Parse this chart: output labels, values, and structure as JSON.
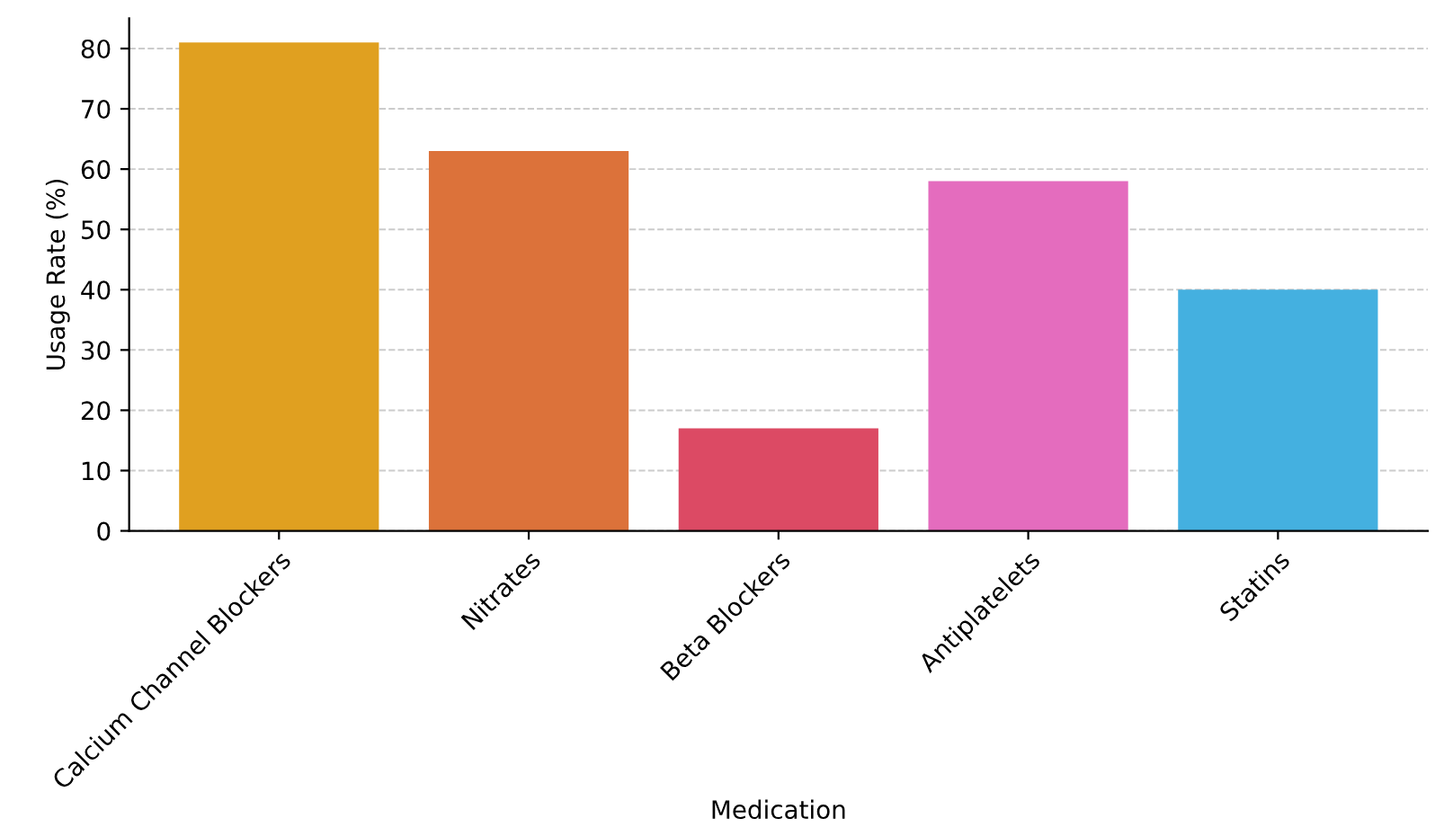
{
  "chart_data": {
    "type": "bar",
    "xlabel": "Medication",
    "ylabel": "Usage Rate (%)",
    "categories": [
      "Calcium Channel Blockers",
      "Nitrates",
      "Beta Blockers",
      "Antiplatelets",
      "Statins"
    ],
    "values": [
      81,
      63,
      17,
      58,
      40
    ],
    "colors": [
      "#e0a020",
      "#dc723a",
      "#dc4a64",
      "#e46cbe",
      "#44b0e0"
    ],
    "ylim": [
      0,
      85
    ],
    "yticks": [
      0,
      10,
      20,
      30,
      40,
      50,
      60,
      70,
      80
    ],
    "grid": "y"
  }
}
